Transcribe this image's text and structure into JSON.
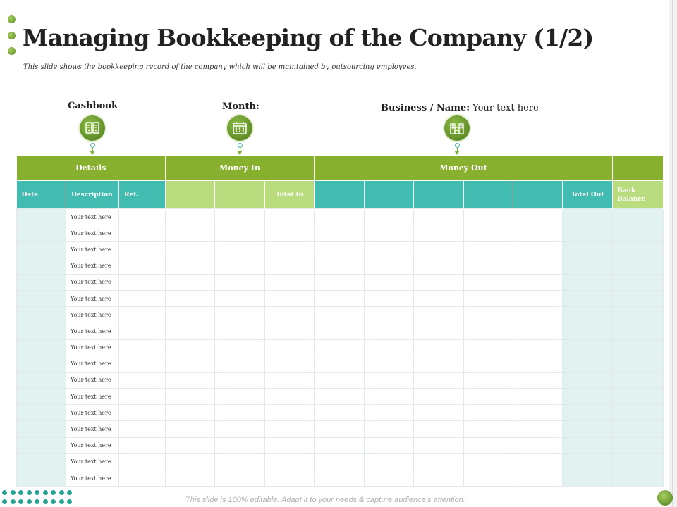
{
  "slide": {
    "title": "Managing Bookkeeping of the Company (1/2)",
    "subtitle": "This slide shows the bookkeeping record of the company which will be maintained by outsourcing employees.",
    "footer": "This slide is 100% editable. Adapt it to your needs & capture audience’s attention."
  },
  "labels": {
    "cashbook": "Cashbook",
    "month": "Month:",
    "business_name_label": "Business / Name:",
    "business_name_value": "Your text here"
  },
  "icons": {
    "cashbook": "book-icon",
    "month": "calendar-icon",
    "business": "building-icon"
  },
  "colors": {
    "header_green": "#86b02d",
    "sub_header_teal": "#42bcb0",
    "sub_header_light_green": "#b8dc7e",
    "row_tint": "#e2f2f0"
  },
  "table": {
    "group_headers": {
      "details": "Details",
      "money_in": "Money In",
      "money_out": "Money Out"
    },
    "sub_headers": {
      "date": "Date",
      "description": "Description",
      "ref": "Ref.",
      "total_in": "Total In",
      "total_out": "Total Out",
      "bank_balance": "Bank Balance"
    },
    "rows": [
      "Your text here",
      "Your text here",
      "Your text here",
      "Your text here",
      "Your text here",
      "Your text here",
      "Your text here",
      "Your text here",
      "Your text here",
      "Your text here",
      "Your text here",
      "Your text here",
      "Your text here",
      "Your text here",
      "Your text here",
      "Your text here",
      "Your text here"
    ]
  }
}
